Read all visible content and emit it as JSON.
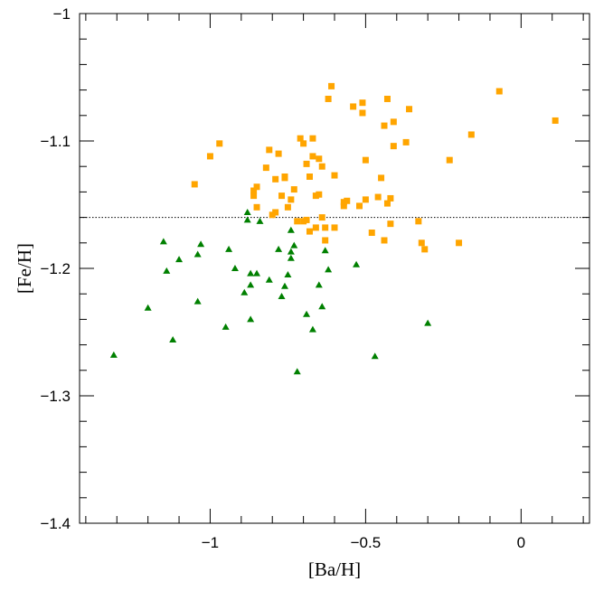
{
  "chart_data": {
    "type": "scatter",
    "title": "",
    "xlabel": "[Ba/H]",
    "ylabel": "[Fe/H]",
    "xlim": [
      -1.42,
      0.22
    ],
    "ylim": [
      -1.4,
      -1.0
    ],
    "x_major_ticks": [
      -1,
      -0.5,
      0
    ],
    "x_tick_labels": [
      "−1",
      "−0.5",
      "0"
    ],
    "y_major_ticks": [
      -1.4,
      -1.3,
      -1.2,
      -1.1,
      -1.0
    ],
    "y_tick_labels": [
      "−1.4",
      "−1.3",
      "−1.2",
      "−1.1",
      "−1"
    ],
    "grid": false,
    "reference_line": {
      "y": -1.16,
      "style": "dotted",
      "color": "#000000"
    },
    "series": [
      {
        "marker": "square",
        "color": "#FFA500",
        "points": [
          [
            -1.05,
            -1.134
          ],
          [
            -1.0,
            -1.112
          ],
          [
            -0.97,
            -1.102
          ],
          [
            -0.86,
            -1.143
          ],
          [
            -0.86,
            -1.139
          ],
          [
            -0.85,
            -1.136
          ],
          [
            -0.85,
            -1.152
          ],
          [
            -0.82,
            -1.121
          ],
          [
            -0.81,
            -1.107
          ],
          [
            -0.8,
            -1.158
          ],
          [
            -0.79,
            -1.156
          ],
          [
            -0.79,
            -1.13
          ],
          [
            -0.78,
            -1.11
          ],
          [
            -0.77,
            -1.143
          ],
          [
            -0.76,
            -1.128
          ],
          [
            -0.76,
            -1.129
          ],
          [
            -0.75,
            -1.152
          ],
          [
            -0.74,
            -1.146
          ],
          [
            -0.73,
            -1.138
          ],
          [
            -0.72,
            -1.163
          ],
          [
            -0.71,
            -1.098
          ],
          [
            -0.7,
            -1.102
          ],
          [
            -0.7,
            -1.163
          ],
          [
            -0.69,
            -1.118
          ],
          [
            -0.69,
            -1.162
          ],
          [
            -0.68,
            -1.128
          ],
          [
            -0.68,
            -1.171
          ],
          [
            -0.67,
            -1.098
          ],
          [
            -0.67,
            -1.112
          ],
          [
            -0.66,
            -1.143
          ],
          [
            -0.66,
            -1.168
          ],
          [
            -0.65,
            -1.142
          ],
          [
            -0.65,
            -1.114
          ],
          [
            -0.64,
            -1.12
          ],
          [
            -0.64,
            -1.16
          ],
          [
            -0.63,
            -1.168
          ],
          [
            -0.63,
            -1.178
          ],
          [
            -0.62,
            -1.067
          ],
          [
            -0.61,
            -1.057
          ],
          [
            -0.6,
            -1.168
          ],
          [
            -0.6,
            -1.127
          ],
          [
            -0.57,
            -1.151
          ],
          [
            -0.57,
            -1.148
          ],
          [
            -0.56,
            -1.147
          ],
          [
            -0.54,
            -1.073
          ],
          [
            -0.52,
            -1.151
          ],
          [
            -0.51,
            -1.07
          ],
          [
            -0.51,
            -1.078
          ],
          [
            -0.5,
            -1.146
          ],
          [
            -0.5,
            -1.115
          ],
          [
            -0.48,
            -1.172
          ],
          [
            -0.46,
            -1.144
          ],
          [
            -0.45,
            -1.129
          ],
          [
            -0.44,
            -1.178
          ],
          [
            -0.44,
            -1.088
          ],
          [
            -0.43,
            -1.067
          ],
          [
            -0.43,
            -1.149
          ],
          [
            -0.42,
            -1.145
          ],
          [
            -0.42,
            -1.165
          ],
          [
            -0.41,
            -1.104
          ],
          [
            -0.41,
            -1.085
          ],
          [
            -0.37,
            -1.101
          ],
          [
            -0.36,
            -1.075
          ],
          [
            -0.33,
            -1.163
          ],
          [
            -0.32,
            -1.18
          ],
          [
            -0.31,
            -1.185
          ],
          [
            -0.23,
            -1.115
          ],
          [
            -0.2,
            -1.18
          ],
          [
            -0.16,
            -1.095
          ],
          [
            -0.07,
            -1.061
          ],
          [
            0.11,
            -1.084
          ]
        ]
      },
      {
        "marker": "triangle",
        "color": "#008000",
        "points": [
          [
            -1.31,
            -1.268
          ],
          [
            -1.2,
            -1.231
          ],
          [
            -1.15,
            -1.179
          ],
          [
            -1.14,
            -1.202
          ],
          [
            -1.12,
            -1.256
          ],
          [
            -1.1,
            -1.193
          ],
          [
            -1.04,
            -1.226
          ],
          [
            -1.04,
            -1.189
          ],
          [
            -1.03,
            -1.181
          ],
          [
            -0.95,
            -1.246
          ],
          [
            -0.94,
            -1.185
          ],
          [
            -0.92,
            -1.2
          ],
          [
            -0.89,
            -1.219
          ],
          [
            -0.88,
            -1.156
          ],
          [
            -0.88,
            -1.162
          ],
          [
            -0.87,
            -1.204
          ],
          [
            -0.87,
            -1.213
          ],
          [
            -0.87,
            -1.24
          ],
          [
            -0.85,
            -1.204
          ],
          [
            -0.84,
            -1.163
          ],
          [
            -0.81,
            -1.209
          ],
          [
            -0.78,
            -1.185
          ],
          [
            -0.77,
            -1.222
          ],
          [
            -0.76,
            -1.214
          ],
          [
            -0.75,
            -1.205
          ],
          [
            -0.74,
            -1.187
          ],
          [
            -0.74,
            -1.192
          ],
          [
            -0.74,
            -1.17
          ],
          [
            -0.73,
            -1.182
          ],
          [
            -0.72,
            -1.281
          ],
          [
            -0.69,
            -1.236
          ],
          [
            -0.67,
            -1.248
          ],
          [
            -0.65,
            -1.213
          ],
          [
            -0.64,
            -1.23
          ],
          [
            -0.63,
            -1.186
          ],
          [
            -0.62,
            -1.201
          ],
          [
            -0.53,
            -1.197
          ],
          [
            -0.47,
            -1.269
          ],
          [
            -0.3,
            -1.243
          ]
        ]
      }
    ]
  }
}
